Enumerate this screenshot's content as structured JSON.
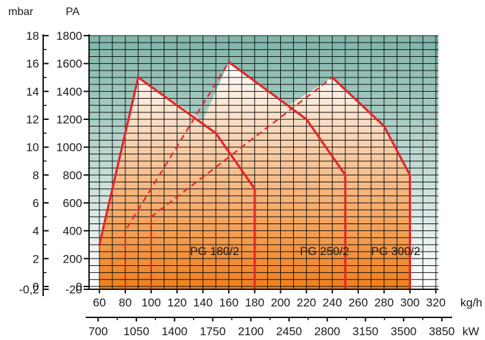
{
  "chart_data": {
    "type": "area",
    "units": {
      "mbar": "mbar",
      "pa": "PA",
      "kgh": "kg/h",
      "kw": "kW"
    },
    "y_mbar_ticks": [
      "18",
      "16",
      "14",
      "12",
      "10",
      "8",
      "6",
      "4",
      "2",
      "0",
      "-0,2"
    ],
    "y_pa_ticks": [
      "1800",
      "1600",
      "1400",
      "1200",
      "1000",
      "800",
      "600",
      "400",
      "200",
      "0",
      "-20"
    ],
    "x_kgh_ticks": [
      "60",
      "80",
      "100",
      "120",
      "140",
      "160",
      "180",
      "200",
      "220",
      "240",
      "260",
      "280",
      "300",
      "320"
    ],
    "x_kw_ticks": [
      "700",
      "1050",
      "1400",
      "1750",
      "2100",
      "2450",
      "2800",
      "3150",
      "3500",
      "3850"
    ],
    "xlim_kgh": [
      52,
      322
    ],
    "ylim_pa": [
      -20,
      1800
    ],
    "grid": true,
    "colors": {
      "plot_bg_top": "#7fb5a8",
      "plot_bg_bottom": "#ffffff",
      "area_top": "#ffffff",
      "area_bottom": "#f07f1c",
      "curve": "#e2262b",
      "grid": "#111111"
    },
    "series": [
      {
        "name": "PG 180/2",
        "points": [
          [
            60,
            300
          ],
          [
            90,
            1500
          ],
          [
            150,
            1100
          ],
          [
            180,
            700
          ],
          [
            180,
            -20
          ]
        ],
        "dashed": [
          [
            80,
            -20
          ],
          [
            80,
            400
          ],
          [
            160,
            1610
          ]
        ]
      },
      {
        "name": "PG 250/2",
        "points": [
          [
            160,
            1610
          ],
          [
            220,
            1200
          ],
          [
            250,
            800
          ],
          [
            250,
            -20
          ]
        ],
        "dashed": [
          [
            100,
            -20
          ],
          [
            100,
            500
          ],
          [
            240,
            1500
          ]
        ]
      },
      {
        "name": "PG 300/2",
        "points": [
          [
            240,
            1500
          ],
          [
            280,
            1150
          ],
          [
            300,
            800
          ],
          [
            300,
            -20
          ]
        ]
      }
    ],
    "envelope": [
      [
        60,
        -20
      ],
      [
        60,
        300
      ],
      [
        90,
        1500
      ],
      [
        140,
        1190
      ],
      [
        160,
        1610
      ],
      [
        206,
        1300
      ],
      [
        240,
        1500
      ],
      [
        280,
        1150
      ],
      [
        300,
        800
      ],
      [
        300,
        -20
      ]
    ],
    "series_labels": [
      {
        "text": "PG 180/2",
        "x": 130,
        "y": 255
      },
      {
        "text": "PG 250/2",
        "x": 215,
        "y": 255
      },
      {
        "text": "PG 300/2",
        "x": 270,
        "y": 255
      }
    ]
  }
}
